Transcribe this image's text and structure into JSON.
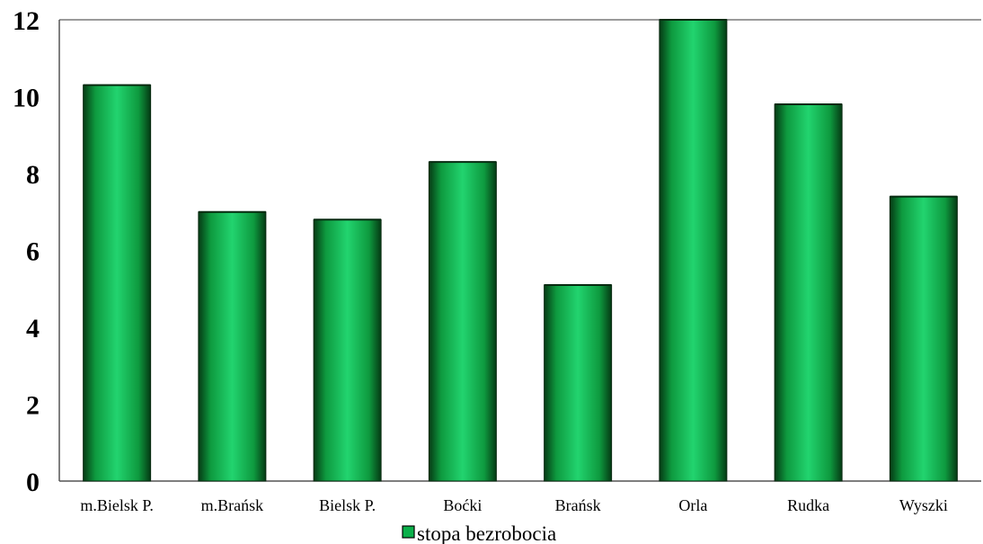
{
  "chart_data": {
    "type": "bar",
    "categories": [
      "m.Bielsk P.",
      "m.Brańsk",
      "Bielsk P.",
      "Boćki",
      "Brańsk",
      "Orla",
      "Rudka",
      "Wyszki"
    ],
    "series": [
      {
        "name": "stopa bezrobocia",
        "values": [
          10.3,
          7.0,
          6.8,
          8.3,
          5.1,
          12.0,
          9.8,
          7.4
        ]
      }
    ],
    "ylim": [
      0,
      12
    ],
    "yticks": [
      "0",
      "2",
      "4",
      "6",
      "8",
      "10",
      "12"
    ],
    "xlabel": "",
    "ylabel": "",
    "title": "",
    "grid": false,
    "legend": "bottom-center",
    "colors": {
      "bar_mid": "#1fd06a",
      "bar_edge": "#063d16",
      "bar_face": "#0bb04a"
    }
  }
}
